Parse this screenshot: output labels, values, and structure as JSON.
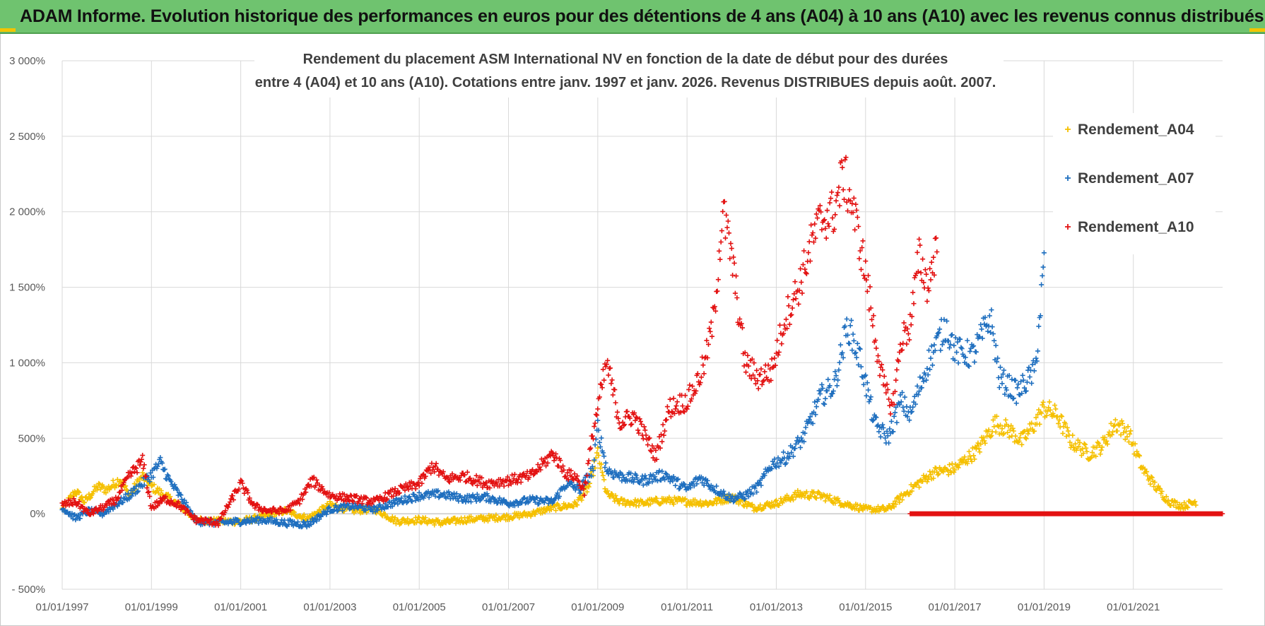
{
  "header": {
    "banner_title": "ADAM Informe. Evolution historique des performances en euros pour des détentions de 4 ans (A04) à 10 ans (A10) avec les revenus connus distribués"
  },
  "colors": {
    "banner_bg": "#6fc36f",
    "A04": "#f5c000",
    "A07": "#1f6fbf",
    "A10": "#e31212",
    "grid": "#d9d9d9"
  },
  "chart_data": {
    "type": "scatter",
    "title_lines": [
      "Rendement du placement ASM International NV en fonction de la date de début pour des durées",
      "entre 4 (A04) et 10 ans (A10).  Cotations entre janv. 1997 et janv. 2026. Revenus DISTRIBUES depuis août. 2007."
    ],
    "xlabel": "",
    "ylabel": "",
    "x_range": [
      1997.0,
      2023.0
    ],
    "ylim": [
      -500,
      3000
    ],
    "y_ticks": [
      -500,
      0,
      500,
      1000,
      1500,
      2000,
      2500,
      3000
    ],
    "y_tick_labels": [
      "- 500%",
      "0%",
      "500%",
      "1 000%",
      "1 500%",
      "2 000%",
      "2 500%",
      "3 000%"
    ],
    "x_ticks": [
      1997,
      1999,
      2001,
      2003,
      2005,
      2007,
      2009,
      2011,
      2013,
      2015,
      2017,
      2019,
      2021
    ],
    "x_tick_labels": [
      "01/01/1997",
      "01/01/1999",
      "01/01/2001",
      "01/01/2003",
      "01/01/2005",
      "01/01/2007",
      "01/01/2009",
      "01/01/2011",
      "01/01/2013",
      "01/01/2015",
      "01/01/2017",
      "01/01/2019",
      "01/01/2021"
    ],
    "legend_position": "right",
    "marker": "+",
    "series": [
      {
        "name": "Rendement_A04",
        "key": "A04",
        "x": [
          1997.0,
          1997.3,
          1997.5,
          1997.8,
          1998.0,
          1998.3,
          1998.5,
          1998.8,
          1999.0,
          1999.3,
          1999.6,
          2000.0,
          2000.5,
          2001.0,
          2001.5,
          2002.0,
          2002.5,
          2003.0,
          2003.5,
          2004.0,
          2004.5,
          2005.0,
          2005.5,
          2006.0,
          2006.5,
          2007.0,
          2007.5,
          2008.0,
          2008.5,
          2008.8,
          2009.0,
          2009.2,
          2009.5,
          2010.0,
          2010.5,
          2011.0,
          2011.5,
          2012.0,
          2012.5,
          2013.0,
          2013.5,
          2014.0,
          2014.5,
          2015.0,
          2015.5,
          2016.0,
          2016.5,
          2017.0,
          2017.5,
          2017.9,
          2018.2,
          2018.5,
          2018.8,
          2019.0,
          2019.3,
          2019.6,
          2020.0,
          2020.3,
          2020.6,
          2020.9,
          2021.2,
          2021.5,
          2021.8,
          2022.1,
          2022.4
        ],
        "y": [
          30,
          150,
          80,
          180,
          160,
          230,
          120,
          250,
          180,
          120,
          60,
          -40,
          -50,
          -50,
          -20,
          20,
          -30,
          60,
          20,
          30,
          -50,
          -40,
          -60,
          -40,
          -30,
          -20,
          0,
          40,
          60,
          180,
          400,
          130,
          80,
          70,
          90,
          80,
          70,
          110,
          40,
          70,
          130,
          120,
          70,
          30,
          30,
          160,
          270,
          300,
          420,
          600,
          560,
          480,
          600,
          700,
          650,
          480,
          400,
          450,
          600,
          530,
          300,
          180,
          80,
          50,
          80
        ]
      },
      {
        "name": "Rendement_A07",
        "key": "A07",
        "x": [
          1997.0,
          1997.3,
          1997.6,
          1997.9,
          1998.2,
          1998.5,
          1998.8,
          1999.0,
          1999.2,
          1999.4,
          1999.7,
          2000.0,
          2000.5,
          2001.0,
          2001.5,
          2002.0,
          2002.5,
          2003.0,
          2003.5,
          2004.0,
          2004.5,
          2005.0,
          2005.5,
          2006.0,
          2006.5,
          2007.0,
          2007.5,
          2008.0,
          2008.3,
          2008.6,
          2008.9,
          2009.0,
          2009.2,
          2009.5,
          2010.0,
          2010.5,
          2011.0,
          2011.3,
          2011.6,
          2012.0,
          2012.3,
          2012.6,
          2012.9,
          2013.2,
          2013.6,
          2014.0,
          2014.3,
          2014.6,
          2014.9,
          2015.2,
          2015.5,
          2015.8,
          2016.0,
          2016.4,
          2016.8,
          2017.0,
          2017.4,
          2017.8,
          2018.0,
          2018.4,
          2018.8,
          2019.0
        ],
        "y": [
          40,
          -30,
          20,
          0,
          60,
          120,
          200,
          260,
          340,
          220,
          90,
          -50,
          -60,
          -50,
          -40,
          -60,
          -70,
          30,
          50,
          30,
          80,
          120,
          130,
          100,
          110,
          70,
          90,
          80,
          200,
          160,
          300,
          580,
          290,
          250,
          220,
          260,
          160,
          240,
          170,
          100,
          120,
          180,
          330,
          370,
          500,
          780,
          850,
          1250,
          1000,
          600,
          500,
          750,
          650,
          1000,
          1250,
          1080,
          1050,
          1300,
          900,
          800,
          950,
          1650
        ]
      },
      {
        "name": "Rendement_A10",
        "key": "A10",
        "x": [
          1997.0,
          1997.3,
          1997.6,
          1997.9,
          1998.2,
          1998.5,
          1998.8,
          1999.0,
          1999.3,
          1999.6,
          2000.0,
          2000.5,
          2001.0,
          2001.3,
          2001.6,
          2002.0,
          2002.3,
          2002.6,
          2003.0,
          2003.5,
          2004.0,
          2004.5,
          2005.0,
          2005.3,
          2005.6,
          2006.0,
          2006.5,
          2007.0,
          2007.5,
          2008.0,
          2008.3,
          2008.5,
          2008.7,
          2008.9,
          2009.0,
          2009.2,
          2009.5,
          2009.8,
          2010.0,
          2010.3,
          2010.6,
          2011.0,
          2011.2,
          2011.4,
          2011.6,
          2011.8,
          2012.0,
          2012.3,
          2012.6,
          2012.9,
          2013.2,
          2013.5,
          2013.8,
          2014.0,
          2014.3,
          2014.5,
          2014.7,
          2015.0,
          2015.2,
          2015.4,
          2015.6,
          2015.8,
          2016.0,
          2016.2,
          2016.4,
          2016.6
        ],
        "y": [
          60,
          80,
          0,
          40,
          90,
          250,
          350,
          40,
          100,
          60,
          -40,
          -60,
          200,
          50,
          20,
          20,
          80,
          220,
          120,
          100,
          80,
          150,
          200,
          320,
          230,
          250,
          200,
          220,
          250,
          400,
          260,
          250,
          150,
          550,
          700,
          1000,
          600,
          650,
          550,
          380,
          700,
          750,
          850,
          1000,
          1300,
          2000,
          1700,
          1000,
          900,
          950,
          1300,
          1500,
          1800,
          1950,
          2000,
          2250,
          2050,
          1600,
          1200,
          850,
          700,
          1150,
          1250,
          1700,
          1500,
          1800
        ]
      },
      {
        "name": "Rendement_A10_zero_tail",
        "key": "A10",
        "x_start": 2016.0,
        "x_end": 2023.0,
        "y_value": 0
      }
    ]
  },
  "legend": [
    {
      "label": "Rendement_A04",
      "key": "A04"
    },
    {
      "label": "Rendement_A07",
      "key": "A07"
    },
    {
      "label": "Rendement_A10",
      "key": "A10"
    }
  ]
}
